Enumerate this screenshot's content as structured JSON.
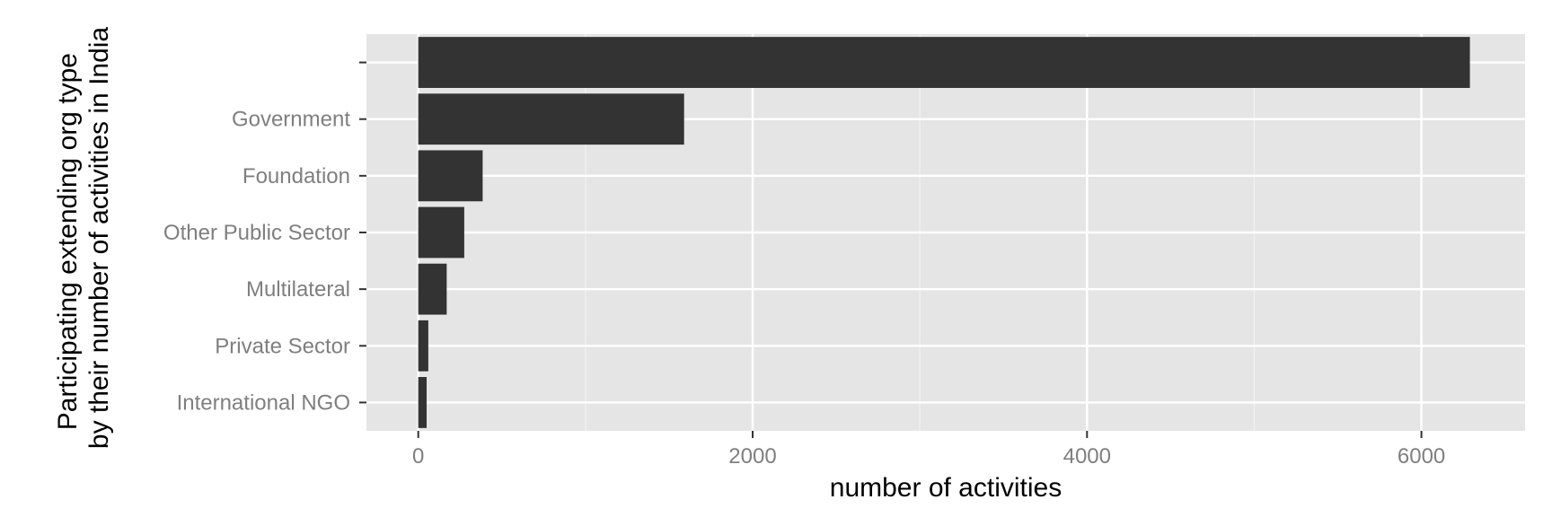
{
  "chart_data": {
    "type": "bar",
    "orientation": "horizontal",
    "categories": [
      "",
      "Government",
      "Foundation",
      "Other Public Sector",
      "Multilateral",
      "Private Sector",
      "International NGO"
    ],
    "values": [
      6290,
      1590,
      385,
      275,
      170,
      60,
      50
    ],
    "xlabel": "number of activities",
    "ylabel": [
      "Participating extending org type",
      "by their number of activities in India"
    ],
    "xlim": [
      -310,
      6620
    ],
    "xticks": [
      0,
      2000,
      4000,
      6000
    ],
    "xtick_labels": [
      "0",
      "2000",
      "4000",
      "6000"
    ],
    "grid": true,
    "legend": "none",
    "colors": {
      "bar": "#333333",
      "panel": "#e5e5e5",
      "grid_major": "#ffffff",
      "grid_minor": "#f2f2f2",
      "tick_label": "#7f7f7f"
    }
  }
}
